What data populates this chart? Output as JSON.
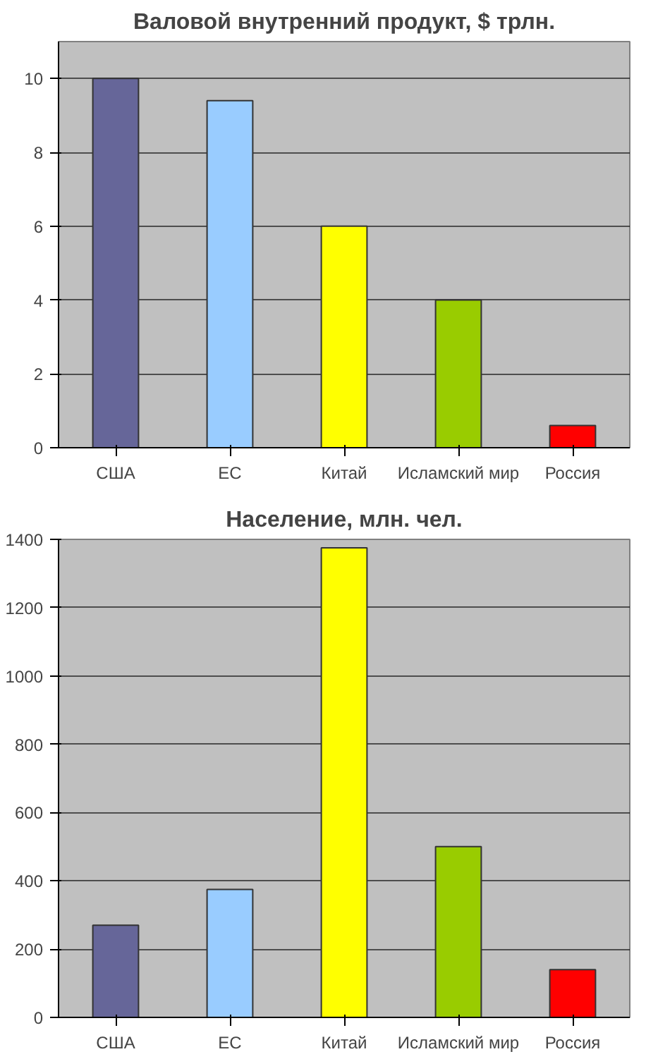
{
  "chart_data": [
    {
      "type": "bar",
      "title": "Валовой внутренний продукт, $ трлн.",
      "categories": [
        "США",
        "ЕС",
        "Китай",
        "Исламский мир",
        "Россия"
      ],
      "values": [
        10,
        9.4,
        6,
        4,
        0.6
      ],
      "colors": [
        "#666699",
        "#99ccff",
        "#ffff00",
        "#99cc00",
        "#ff0000"
      ],
      "ylim": [
        0,
        11
      ],
      "yticks": [
        0,
        2,
        4,
        6,
        8,
        10
      ],
      "grid": "y"
    },
    {
      "type": "bar",
      "title": "Население, млн. чел.",
      "categories": [
        "США",
        "ЕС",
        "Китай",
        "Исламский мир",
        "Россия"
      ],
      "values": [
        270,
        375,
        1375,
        500,
        140
      ],
      "colors": [
        "#666699",
        "#99ccff",
        "#ffff00",
        "#99cc00",
        "#ff0000"
      ],
      "ylim": [
        0,
        1400
      ],
      "yticks": [
        0,
        200,
        400,
        600,
        800,
        1000,
        1200,
        1400
      ],
      "grid": "y"
    }
  ]
}
